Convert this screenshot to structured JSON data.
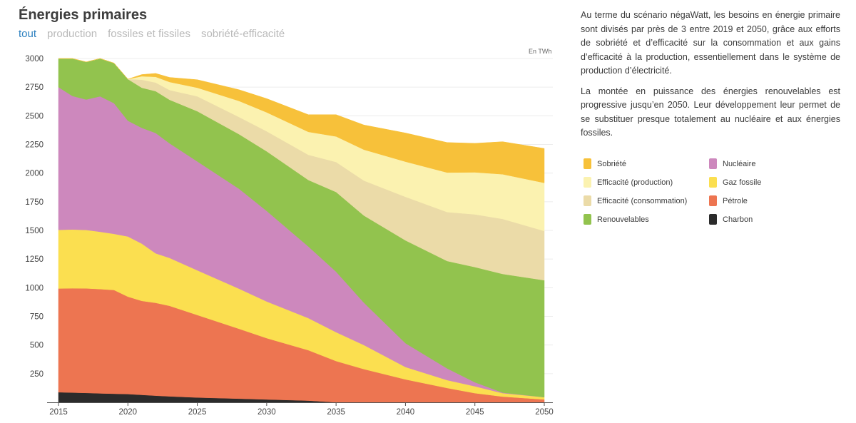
{
  "title": "Énergies primaires",
  "tabs": [
    {
      "label": "tout",
      "active": true
    },
    {
      "label": "production",
      "active": false
    },
    {
      "label": "fossiles et fissiles",
      "active": false
    },
    {
      "label": "sobriété-efficacité",
      "active": false
    }
  ],
  "description": [
    "Au terme du scénario négaWatt, les besoins en énergie primaire sont divisés par près de 3 entre 2019 et 2050, grâce aux efforts de sobriété et d’efficacité sur la consommation et aux gains d’efficacité à la production, essentiellement dans le système de production d’électricité.",
    "La montée en puissance des énergies renouvelables est progressive jusqu’en 2050. Leur développement leur permet de se substituer presque totalement au nucléaire et aux énergies fossiles."
  ],
  "chart_data": {
    "type": "area",
    "stacked": true,
    "unit_label": "En TWh",
    "title": "Énergies primaires",
    "xlabel": "",
    "ylabel": "",
    "x": [
      2015,
      2016,
      2017,
      2018,
      2019,
      2020,
      2021,
      2022,
      2023,
      2025,
      2028,
      2030,
      2033,
      2035,
      2037,
      2040,
      2043,
      2045,
      2047,
      2050
    ],
    "xticks": [
      "2015",
      "2020",
      "2025",
      "2030",
      "2035",
      "2040",
      "2045",
      "2050"
    ],
    "yticks": [
      "250",
      "500",
      "750",
      "1000",
      "1250",
      "1500",
      "1750",
      "2000",
      "2250",
      "2500",
      "2750",
      "3000"
    ],
    "ylim": [
      0,
      3000
    ],
    "xlim": [
      2015,
      2050
    ],
    "series": [
      {
        "name": "Charbon",
        "color": "#2b2b2b",
        "values": [
          88,
          85,
          82,
          78,
          75,
          72,
          65,
          58,
          52,
          42,
          32,
          25,
          15,
          0,
          0,
          0,
          0,
          0,
          0,
          0
        ]
      },
      {
        "name": "Pétrole",
        "color": "#ed7551",
        "values": [
          905,
          910,
          912,
          910,
          905,
          850,
          820,
          810,
          790,
          720,
          610,
          535,
          440,
          360,
          290,
          200,
          125,
          80,
          50,
          25
        ]
      },
      {
        "name": "Gaz fossile",
        "color": "#fbdf50",
        "values": [
          512,
          513,
          510,
          500,
          490,
          525,
          500,
          432,
          418,
          390,
          350,
          320,
          280,
          252,
          210,
          108,
          69,
          60,
          30,
          20
        ]
      },
      {
        "name": "Nucléaire",
        "color": "#cd88bd",
        "values": [
          1245,
          1165,
          1138,
          1182,
          1140,
          1010,
          1010,
          1050,
          1000,
          950,
          872,
          790,
          625,
          528,
          370,
          208,
          102,
          35,
          5,
          0
        ]
      },
      {
        "name": "Renouvelables",
        "color": "#92c34e",
        "values": [
          250,
          327,
          328,
          330,
          350,
          363,
          350,
          365,
          380,
          438,
          476,
          520,
          580,
          695,
          760,
          897,
          937,
          1005,
          1035,
          1020
        ]
      },
      {
        "name": "Efficacité (consommation)",
        "color": "#ebdba8",
        "values": [
          0,
          0,
          0,
          0,
          0,
          0,
          70,
          75,
          85,
          130,
          150,
          175,
          220,
          262,
          305,
          380,
          427,
          460,
          480,
          430
        ]
      },
      {
        "name": "Efficacité (production)",
        "color": "#fbf2b0",
        "values": [
          0,
          0,
          0,
          0,
          0,
          0,
          30,
          50,
          70,
          75,
          140,
          165,
          200,
          223,
          270,
          307,
          345,
          367,
          390,
          420
        ]
      },
      {
        "name": "Sobriété",
        "color": "#f7c13a",
        "values": [
          0,
          0,
          0,
          0,
          0,
          0,
          15,
          30,
          40,
          70,
          98,
          120,
          150,
          190,
          215,
          250,
          262,
          253,
          284,
          300
        ]
      }
    ]
  },
  "legend": [
    {
      "label": "Sobriété",
      "color": "#f7c13a"
    },
    {
      "label": "Nucléaire",
      "color": "#cd88bd"
    },
    {
      "label": "Efficacité (production)",
      "color": "#fbf2b0"
    },
    {
      "label": "Gaz fossile",
      "color": "#fbdf50"
    },
    {
      "label": "Efficacité (consommation)",
      "color": "#ebdba8"
    },
    {
      "label": "Pétrole",
      "color": "#ed7551"
    },
    {
      "label": "Renouvelables",
      "color": "#92c34e"
    },
    {
      "label": "Charbon",
      "color": "#2b2b2b"
    }
  ]
}
